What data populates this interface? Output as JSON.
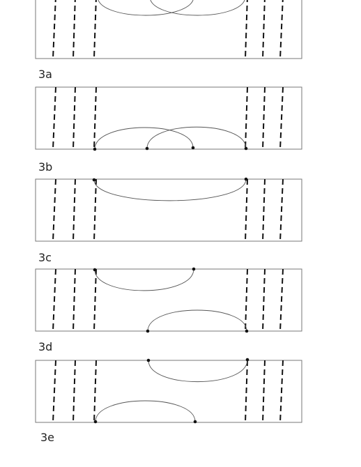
{
  "panels": [
    {
      "label": "3a"
    },
    {
      "label": "3b"
    },
    {
      "label": "3c"
    },
    {
      "label": "3d"
    },
    {
      "label": "3e"
    }
  ]
}
